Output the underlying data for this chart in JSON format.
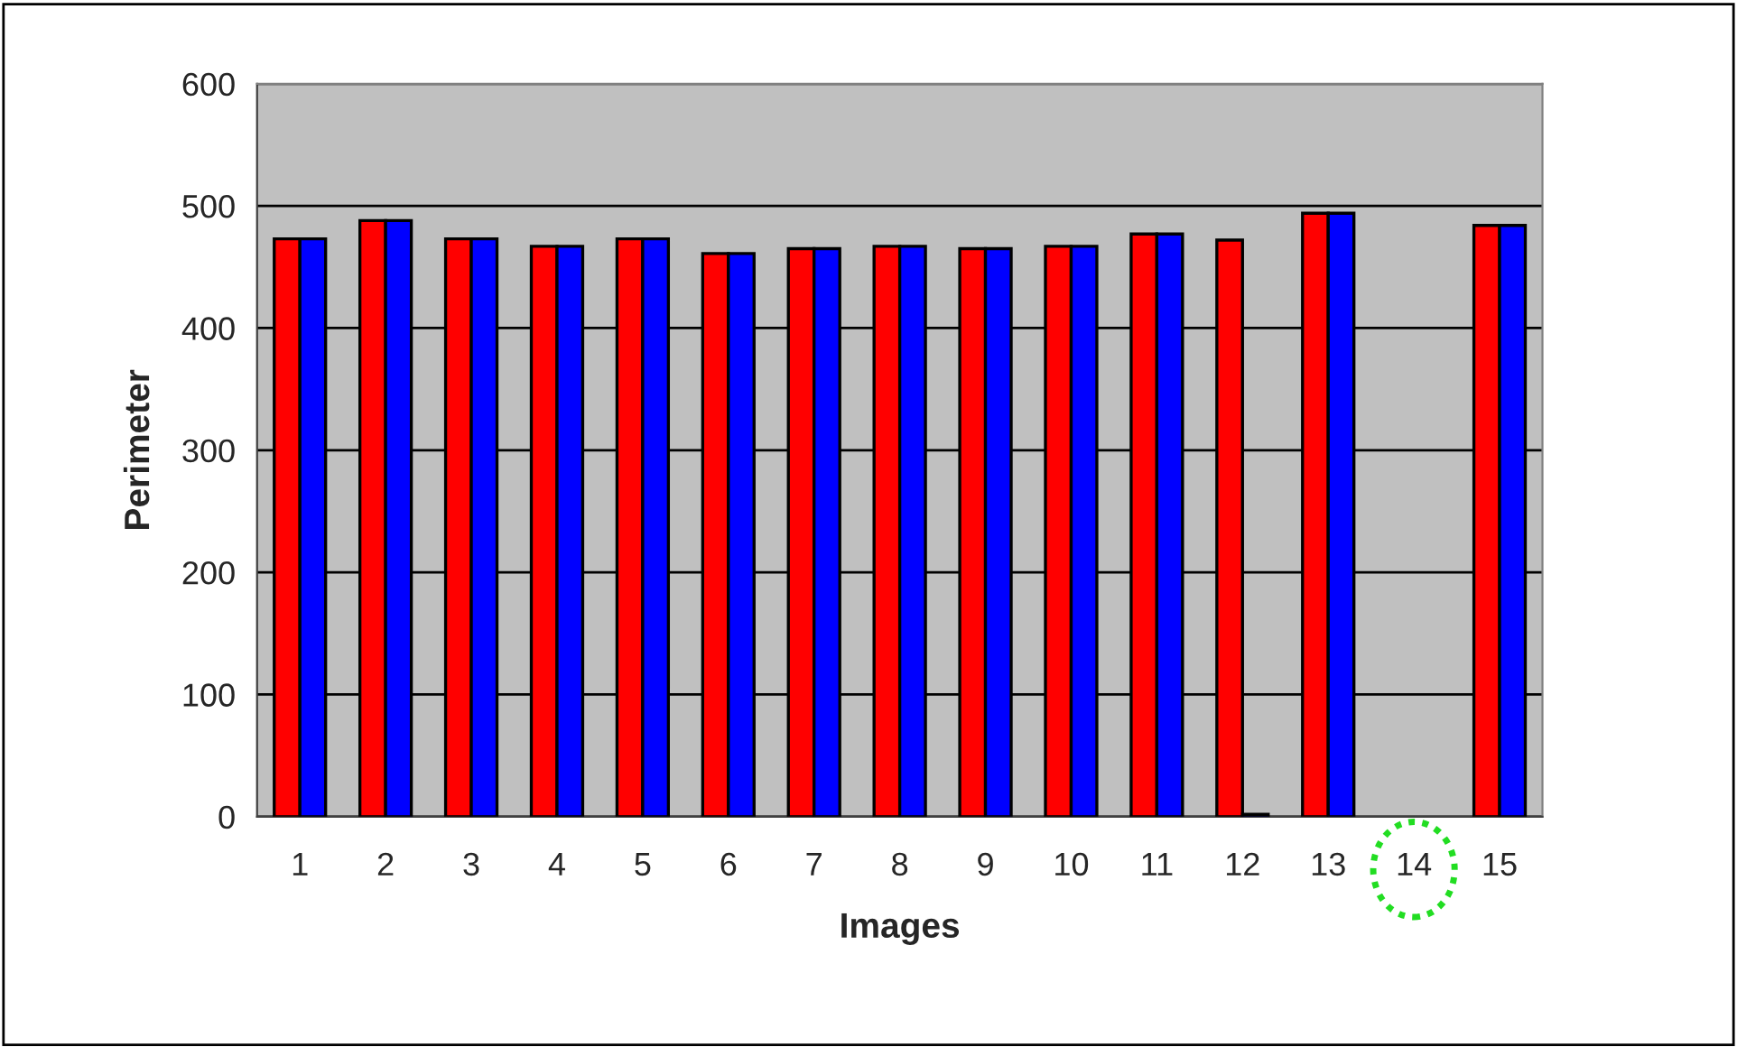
{
  "chart_data": {
    "type": "bar",
    "xlabel": "Images",
    "ylabel": "Perimeter",
    "categories": [
      "1",
      "2",
      "3",
      "4",
      "5",
      "6",
      "7",
      "8",
      "9",
      "10",
      "11",
      "12",
      "13",
      "14",
      "15"
    ],
    "series": [
      {
        "color": "#ff0000",
        "values": [
          473,
          488,
          473,
          467,
          473,
          461,
          465,
          467,
          465,
          467,
          477,
          472,
          494,
          null,
          484
        ]
      },
      {
        "color": "#0000ff",
        "values": [
          473,
          488,
          473,
          467,
          473,
          461,
          465,
          467,
          465,
          467,
          477,
          2,
          494,
          null,
          484
        ]
      }
    ],
    "ylim": [
      0,
      600
    ],
    "yticks": [
      0,
      100,
      200,
      300,
      400,
      500,
      600
    ],
    "grid": "y",
    "legend": false
  }
}
